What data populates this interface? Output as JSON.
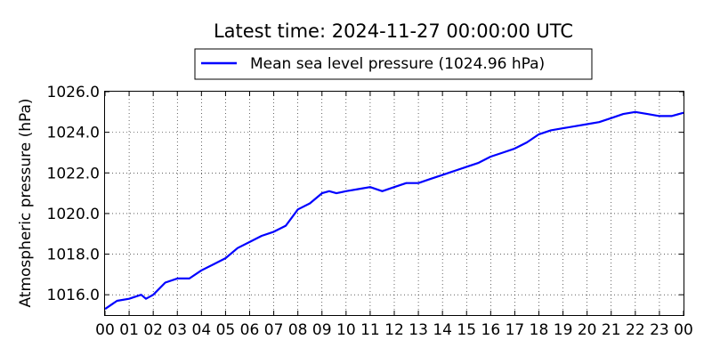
{
  "chart_data": {
    "type": "line",
    "title": "Latest time: 2024-11-27 00:00:00 UTC",
    "xlabel": "",
    "ylabel": "Atmospheric pressure (hPa)",
    "xlim": [
      0,
      24
    ],
    "ylim": [
      1015.0,
      1026.0
    ],
    "x_tick_labels": [
      "00",
      "01",
      "02",
      "03",
      "04",
      "05",
      "06",
      "07",
      "08",
      "09",
      "10",
      "11",
      "12",
      "13",
      "14",
      "15",
      "16",
      "17",
      "18",
      "19",
      "20",
      "21",
      "22",
      "23",
      "00"
    ],
    "y_ticks": [
      1016.0,
      1018.0,
      1020.0,
      1022.0,
      1024.0,
      1026.0
    ],
    "y_tick_labels": [
      "1016.0",
      "1018.0",
      "1020.0",
      "1022.0",
      "1024.0",
      "1026.0"
    ],
    "grid": true,
    "legend_position": "top-center",
    "series": [
      {
        "name": "Mean sea level pressure (1024.96 hPa)",
        "color": "#0000ff",
        "x": [
          0,
          0.5,
          1,
          1.5,
          1.7,
          2,
          2.5,
          3,
          3.5,
          4,
          4.5,
          5,
          5.5,
          6,
          6.5,
          7,
          7.5,
          8,
          8.5,
          9,
          9.3,
          9.6,
          10,
          10.5,
          11,
          11.5,
          12,
          12.5,
          13,
          13.5,
          14,
          14.5,
          15,
          15.5,
          16,
          16.5,
          17,
          17.5,
          18,
          18.5,
          19,
          19.5,
          20,
          20.5,
          21,
          21.5,
          22,
          22.5,
          23,
          23.5,
          24
        ],
        "y": [
          1015.3,
          1015.7,
          1015.8,
          1016.0,
          1015.8,
          1016.0,
          1016.6,
          1016.8,
          1016.8,
          1017.2,
          1017.5,
          1017.8,
          1018.3,
          1018.6,
          1018.9,
          1019.1,
          1019.4,
          1020.2,
          1020.5,
          1021.0,
          1021.1,
          1021.0,
          1021.1,
          1021.2,
          1021.3,
          1021.1,
          1021.3,
          1021.5,
          1021.5,
          1021.7,
          1021.9,
          1022.1,
          1022.3,
          1022.5,
          1022.8,
          1023.0,
          1023.2,
          1023.5,
          1023.9,
          1024.1,
          1024.2,
          1024.3,
          1024.4,
          1024.5,
          1024.7,
          1024.9,
          1025.0,
          1024.9,
          1024.8,
          1024.8,
          1024.96
        ]
      }
    ]
  }
}
